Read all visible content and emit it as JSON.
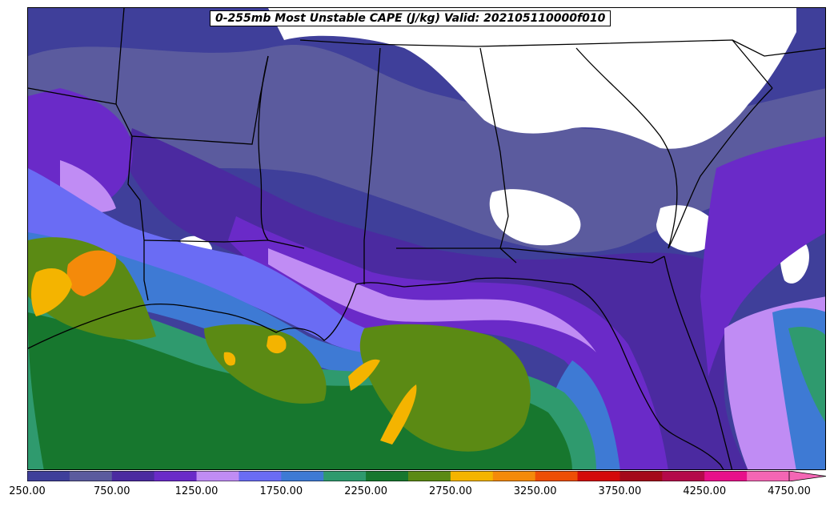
{
  "title": "0-255mb Most Unstable CAPE (J/kg) Valid: 202105110000f010",
  "colorbar": {
    "colors": [
      "#3f3f9a",
      "#5b5b9e",
      "#4b2aa0",
      "#6a2ac8",
      "#c08cf4",
      "#6a6cf4",
      "#3e7ad4",
      "#2f9a6e",
      "#17772e",
      "#5b8a14",
      "#f4b400",
      "#f48a0a",
      "#ee4e06",
      "#d40a0a",
      "#a40a1a",
      "#b40a4a",
      "#e8108a",
      "#f466b4"
    ],
    "labels": [
      "250.00",
      "750.00",
      "1250.00",
      "1750.00",
      "2250.00",
      "2750.00",
      "3250.00",
      "3750.00",
      "4250.00",
      "4750.00"
    ]
  },
  "legend_colors": {
    "white": "#ffffff",
    "blue_dark": "#3f3f9a",
    "slate": "#5b5b9e",
    "violet": "#4b2aa0",
    "purple": "#6a2ac8",
    "lavender": "#c08cf4",
    "periwinkle": "#6a6cf4",
    "blue": "#3e7ad4",
    "teal": "#2f9a6e",
    "green": "#17772e",
    "olive": "#5b8a14",
    "yellow": "#f4b400",
    "orange": "#f48a0a"
  }
}
